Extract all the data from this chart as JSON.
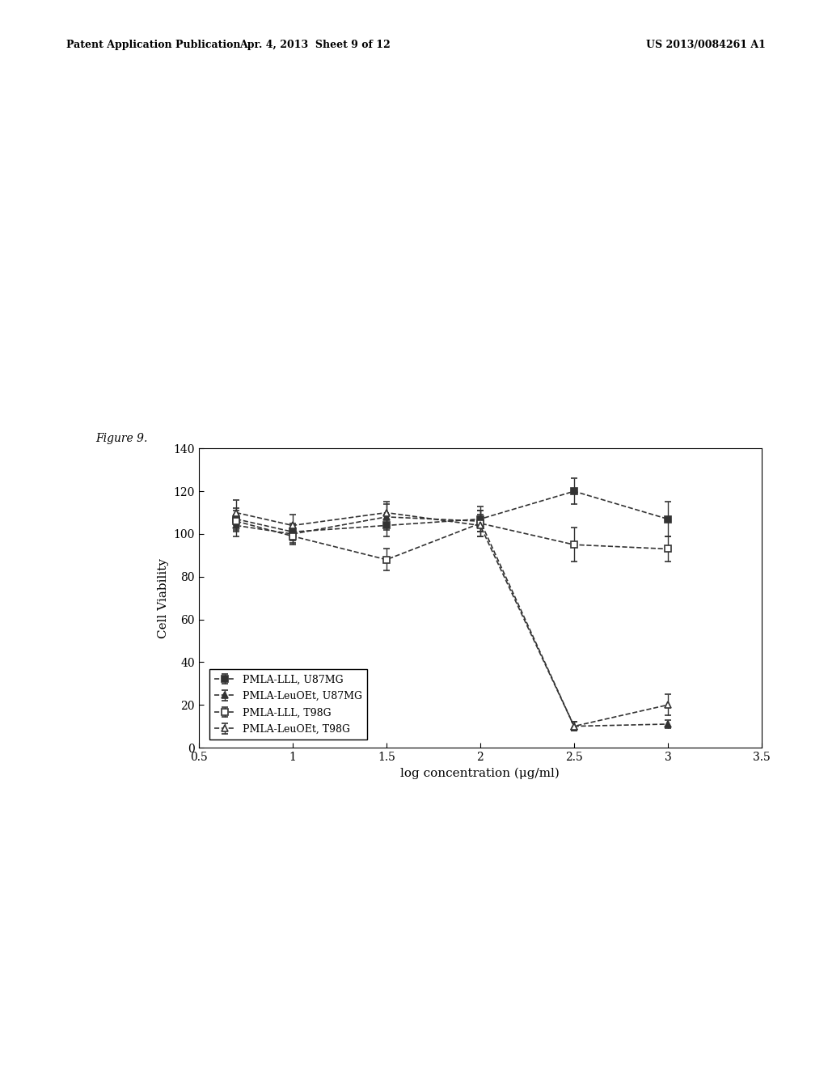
{
  "header_left": "Patent Application Publication",
  "header_mid": "Apr. 4, 2013  Sheet 9 of 12",
  "header_right": "US 2013/0084261 A1",
  "figure_label": "Figure 9.",
  "xlabel": "log concentration (μg/ml)",
  "ylabel": "Cell Viability",
  "xlim": [
    0.5,
    3.5
  ],
  "ylim": [
    0,
    140
  ],
  "yticks": [
    0,
    20,
    40,
    60,
    80,
    100,
    120,
    140
  ],
  "xticks": [
    0.5,
    1,
    1.5,
    2,
    2.5,
    3,
    3.5
  ],
  "series": [
    {
      "label": "PMLA-LLL, U87MG",
      "x": [
        0.7,
        1.0,
        1.5,
        2.0,
        2.5,
        3.0
      ],
      "y": [
        107,
        101,
        104,
        107,
        120,
        107
      ],
      "yerr": [
        5,
        4,
        5,
        6,
        6,
        8
      ],
      "color": "#333333",
      "marker": "s",
      "linestyle": "--"
    },
    {
      "label": "PMLA-LeuOEt, U87MG",
      "x": [
        0.7,
        1.0,
        1.5,
        2.0,
        2.5,
        3.0
      ],
      "y": [
        104,
        100,
        108,
        106,
        10,
        11
      ],
      "yerr": [
        5,
        4,
        6,
        5,
        2,
        2
      ],
      "color": "#333333",
      "marker": "^",
      "linestyle": "--"
    },
    {
      "label": "PMLA-LLL, T98G",
      "x": [
        0.7,
        1.0,
        1.5,
        2.0,
        2.5,
        3.0
      ],
      "y": [
        106,
        99,
        88,
        105,
        95,
        93
      ],
      "yerr": [
        5,
        4,
        5,
        6,
        8,
        6
      ],
      "color": "#333333",
      "marker": "s",
      "linestyle": "--",
      "fillstyle": "none"
    },
    {
      "label": "PMLA-LeuOEt, T98G",
      "x": [
        0.7,
        1.0,
        1.5,
        2.0,
        2.5,
        3.0
      ],
      "y": [
        110,
        104,
        110,
        104,
        10,
        20
      ],
      "yerr": [
        6,
        5,
        5,
        5,
        2,
        5
      ],
      "color": "#333333",
      "marker": "^",
      "linestyle": "--",
      "fillstyle": "none"
    }
  ],
  "background_color": "#ffffff",
  "plot_bg_color": "#ffffff"
}
